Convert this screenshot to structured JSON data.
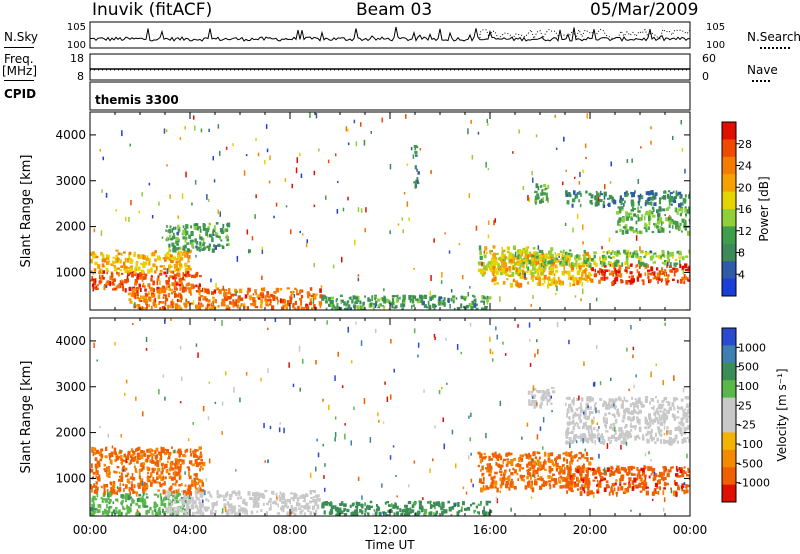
{
  "header": {
    "station": "Inuvik (fitACF)",
    "beam": "Beam 03",
    "date": "05/Mar/2009"
  },
  "strips": {
    "nsky_label": "N.Sky",
    "nsearch_label": "N.Search",
    "freq_label": "Freq.",
    "freq_unit": "[MHz]",
    "nave_label": "Nave",
    "cpid_label": "CPID",
    "cpid_value": "themis 3300",
    "noise_ticks_left": [
      "10^5",
      "10^0"
    ],
    "noise_ticks_right": [
      "10^5",
      "10^0"
    ],
    "freq_ticks": [
      "18",
      "8"
    ],
    "nave_ticks": [
      "60",
      "0"
    ]
  },
  "colors": {
    "power": [
      "#1a3fd6",
      "#2f5aa8",
      "#3c8a5a",
      "#3f9e4a",
      "#8fcf3a",
      "#e6d400",
      "#f5a200",
      "#f47c00",
      "#f04a00",
      "#e01000"
    ],
    "velocity": [
      "#2a4ad0",
      "#3e7fb0",
      "#3a8e55",
      "#5ab84a",
      "#c8c8c8",
      "#c8c8c8",
      "#f2b400",
      "#f58a00",
      "#f06000",
      "#e01000"
    ]
  },
  "chart_data": [
    {
      "type": "heatmap",
      "title": "Power",
      "xlabel": "Time UT",
      "ylabel": "Slant Range [km]",
      "x_range_hours": [
        0,
        24
      ],
      "ylim": [
        180,
        4500
      ],
      "y_ticks": [
        1000,
        2000,
        3000,
        4000
      ],
      "x_tick_labels": [
        "00:00",
        "04:00",
        "08:00",
        "12:00",
        "16:00",
        "20:00",
        "00:00"
      ],
      "colorbar": {
        "label": "Power [dB]",
        "range": [
          0,
          32
        ],
        "tick_values": [
          4,
          8,
          12,
          16,
          20,
          24,
          28
        ],
        "tick_labels": [
          "4",
          "8",
          "12",
          "16",
          "20",
          "24",
          "28"
        ]
      },
      "regions": [
        {
          "t": [
            0.0,
            4.5
          ],
          "r": [
            650,
            1050
          ],
          "v": 27
        },
        {
          "t": [
            0.0,
            4.0
          ],
          "r": [
            1050,
            1500
          ],
          "v": 20
        },
        {
          "t": [
            1.5,
            9.2
          ],
          "r": [
            230,
            680
          ],
          "v": 25
        },
        {
          "t": [
            3.0,
            5.5
          ],
          "r": [
            1500,
            2100
          ],
          "v": 10
        },
        {
          "t": [
            9.2,
            16.0
          ],
          "r": [
            220,
            520
          ],
          "v": 10
        },
        {
          "t": [
            15.5,
            18.5
          ],
          "r": [
            1000,
            1600
          ],
          "v": 16
        },
        {
          "t": [
            16.0,
            20.0
          ],
          "r": [
            750,
            1450
          ],
          "v": 20
        },
        {
          "t": [
            20.0,
            24.0
          ],
          "r": [
            800,
            1200
          ],
          "v": 28
        },
        {
          "t": [
            17.0,
            24.0
          ],
          "r": [
            1200,
            1500
          ],
          "v": 14
        },
        {
          "t": [
            21.0,
            24.0
          ],
          "r": [
            1900,
            2450
          ],
          "v": 12
        },
        {
          "t": [
            19.0,
            24.0
          ],
          "r": [
            2500,
            2800
          ],
          "v": 8
        },
        {
          "t": [
            17.7,
            18.3
          ],
          "r": [
            2550,
            2950
          ],
          "v": 12
        },
        {
          "t": [
            12.9,
            13.1
          ],
          "r": [
            2900,
            3800
          ],
          "v": 8
        }
      ]
    },
    {
      "type": "heatmap",
      "title": "Velocity",
      "xlabel": "Time UT",
      "ylabel": "Slant Range [km]",
      "x_range_hours": [
        0,
        24
      ],
      "ylim": [
        180,
        4500
      ],
      "y_ticks": [
        1000,
        2000,
        3000,
        4000
      ],
      "x_tick_labels": [
        "00:00",
        "04:00",
        "08:00",
        "12:00",
        "16:00",
        "20:00",
        "00:00"
      ],
      "colorbar": {
        "label": "Velocity [m s^-1]",
        "tick_labels": [
          "1000",
          "500",
          "100",
          "25",
          "-25",
          "-100",
          "-500",
          "-1000"
        ]
      },
      "regions": [
        {
          "t": [
            0.0,
            4.5
          ],
          "r": [
            700,
            1700
          ],
          "v": -300
        },
        {
          "t": [
            0.0,
            4.0
          ],
          "r": [
            250,
            700
          ],
          "v": 80
        },
        {
          "t": [
            3.0,
            9.2
          ],
          "r": [
            250,
            750
          ],
          "v": 0
        },
        {
          "t": [
            9.2,
            16.0
          ],
          "r": [
            220,
            520
          ],
          "v": 150
        },
        {
          "t": [
            15.5,
            20.0
          ],
          "r": [
            800,
            1600
          ],
          "v": -300
        },
        {
          "t": [
            19.0,
            24.0
          ],
          "r": [
            700,
            1300
          ],
          "v": -400
        },
        {
          "t": [
            19.0,
            24.0
          ],
          "r": [
            1800,
            2800
          ],
          "v": 0
        },
        {
          "t": [
            17.5,
            18.5
          ],
          "r": [
            2600,
            3000
          ],
          "v": 0
        }
      ]
    }
  ]
}
